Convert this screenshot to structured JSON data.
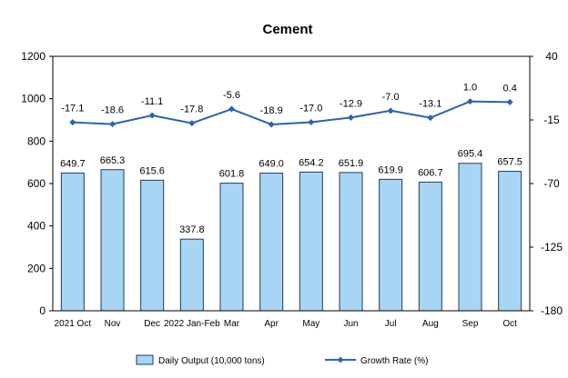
{
  "chart_data": {
    "type": "bar",
    "title": "Cement",
    "categories": [
      "2021 Oct",
      "Nov",
      "Dec",
      "2022 Jan-Feb",
      "Mar",
      "Apr",
      "May",
      "Jun",
      "Jul",
      "Aug",
      "Sep",
      "Oct"
    ],
    "series": [
      {
        "name": "Daily Output (10,000 tons)",
        "type": "bar",
        "axis": "left",
        "values": [
          649.7,
          665.3,
          615.6,
          337.8,
          601.8,
          649.0,
          654.2,
          651.9,
          619.9,
          606.7,
          695.4,
          657.5
        ],
        "labels": [
          "649.7",
          "665.3",
          "615.6",
          "337.8",
          "601.8",
          "649.0",
          "654.2",
          "651.9",
          "619.9",
          "606.7",
          "695.4",
          "657.5"
        ]
      },
      {
        "name": "Growth Rate (%)",
        "type": "line",
        "axis": "right",
        "values": [
          -17.1,
          -18.6,
          -11.1,
          -17.8,
          -5.6,
          -18.9,
          -17.0,
          -12.9,
          -7.0,
          -13.1,
          1.0,
          0.4
        ],
        "labels": [
          "-17.1",
          "-18.6",
          "-11.1",
          "-17.8",
          "-5.6",
          "-18.9",
          "-17.0",
          "-12.9",
          "-7.0",
          "-13.1",
          "1.0",
          "0.4"
        ]
      }
    ],
    "y_left": {
      "min": 0,
      "max": 1200,
      "ticks": [
        "0",
        "200",
        "400",
        "600",
        "800",
        "1000",
        "1200"
      ]
    },
    "y_right": {
      "min": -180,
      "max": 40,
      "ticks": [
        "-180",
        "-125",
        "-70",
        "-15",
        "40"
      ]
    },
    "legend_position": "bottom",
    "grid": false,
    "colors": {
      "bar_fill": "#a9d5f5",
      "bar_stroke": "#1f3a5f",
      "line": "#2b63ad"
    }
  }
}
